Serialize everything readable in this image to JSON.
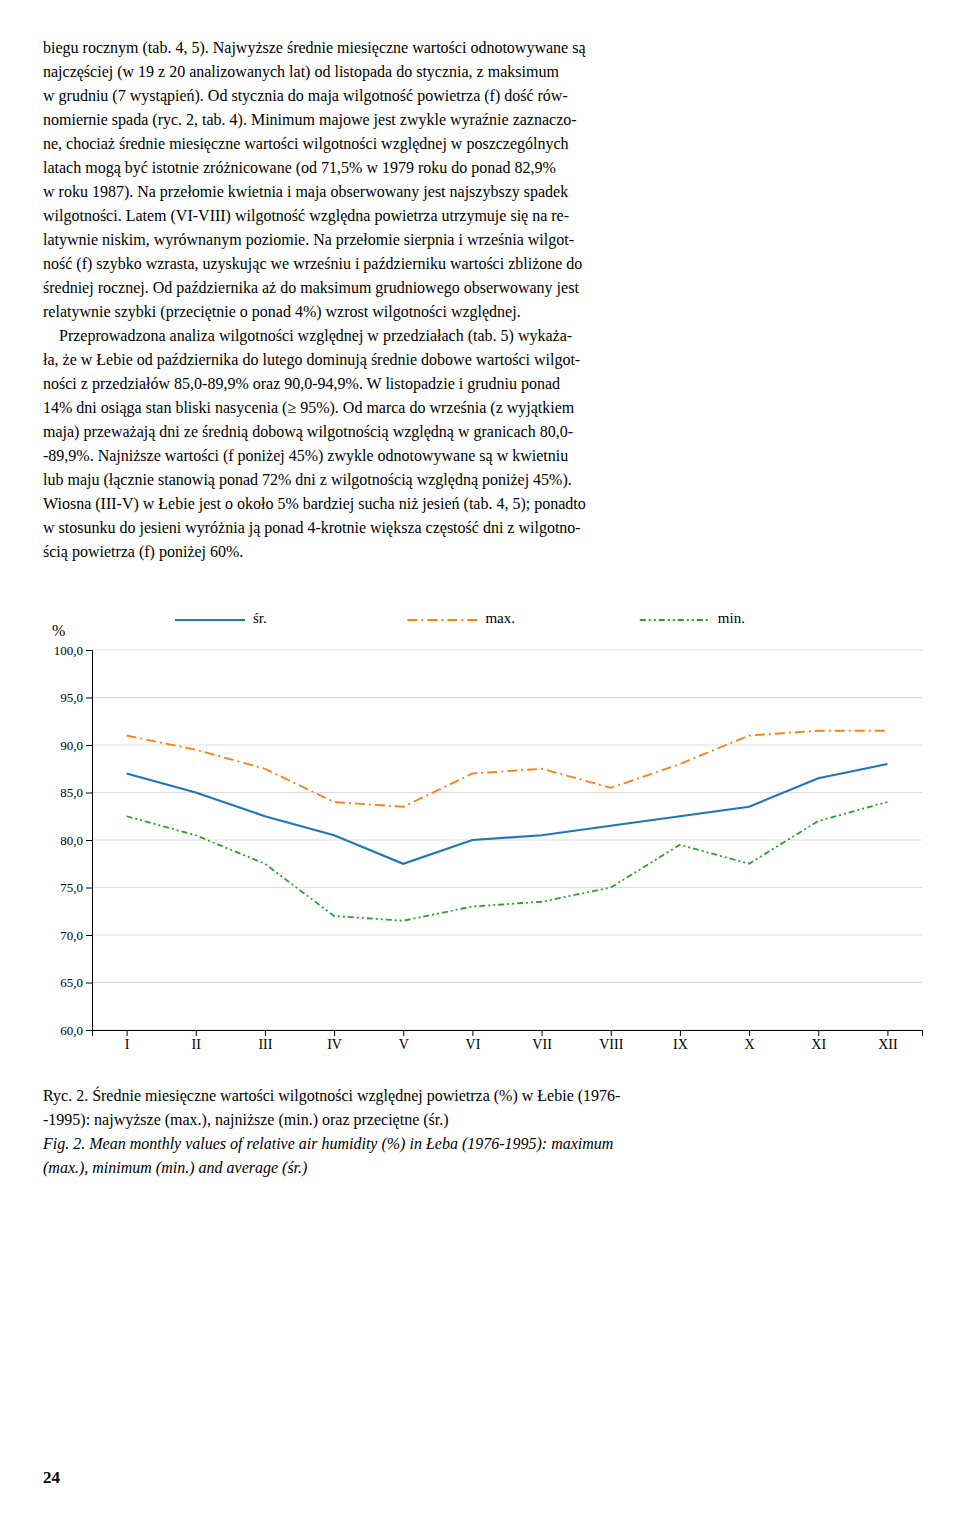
{
  "text_lines": [
    "biegu rocznym (tab. 4, 5). Najwyższe średnie miesięczne wartości odnotowywane są",
    "najczęściej (w 19 z 20 analizowanych lat) od listopada do stycznia, z maksimum",
    "w grudniu (7 wystąpień). Od stycznia do maja wilgotność powietrza (f) dość rów-",
    "nomiernie spada (ryc. 2, tab. 4). Minimum majowe jest zwykle wyraźnie zaznaczo-",
    "ne, chociaż średnie miesięczne wartości wilgotności względnej w poszczególnych",
    "latach mogą być istotnie zróżnicowane (od 71,5% w 1979 roku do ponad 82,9%",
    "w roku 1987). Na przełomie kwietnia i maja obserwowany jest najszybszy spadek",
    "wilgotności. Latem (VI-VIII) wilgotność względna powietrza utrzymuje się na re-",
    "latywnie niskim, wyrównanym poziomie. Na przełomie sierpnia i września wilgot-",
    "ność (f) szybko wzrasta, uzyskując we wrześniu i październiku wartości zbliżone do",
    "średniej rocznej. Od października aż do maksimum grudniowego obserwowany jest",
    "relatywnie szybki (przeciętnie o ponad 4%) wzrost wilgotności względnej.",
    "    Przeprowadzona analiza wilgotności względnej w przedziałach (tab. 5) wykaża-",
    "ła, że w Łebie od października do lutego dominują średnie dobowe wartości wilgot-",
    "ności z przedziałów 85,0-89,9% oraz 90,0-94,9%. W listopadzie i grudniu ponad",
    "14% dni osiąga stan bliski nasycenia (≥ 95%). Od marca do września (z wyjątkiem",
    "maja) przeważają dni ze średnią dobową wilgotnością względną w granicach 80,0-",
    "-89,9%. Najniższe wartości (f poniżej 45%) zwykle odnotowywane są w kwietniu",
    "lub maju (łącznie stanowią ponad 72% dni z wilgotnością względną poniżej 45%).",
    "Wiosna (III-V) w Łebie jest o około 5% bardziej sucha niż jesień (tab. 4, 5); ponadto",
    "w stosunku do jesieni wyróżnia ją ponad 4-krotnie większa częstość dni z wilgotno-",
    "ścią powietrza (f) poniżej 60%."
  ],
  "chart_data": {
    "type": "line",
    "ylabel": "%",
    "categories": [
      "I",
      "II",
      "III",
      "IV",
      "V",
      "VI",
      "VII",
      "VIII",
      "IX",
      "X",
      "XI",
      "XII"
    ],
    "series": [
      {
        "name": "śr.",
        "line_style": "solid",
        "values": [
          87.0,
          85.0,
          82.5,
          80.5,
          77.5,
          80.0,
          80.5,
          81.5,
          82.5,
          83.5,
          86.5,
          88.0
        ]
      },
      {
        "name": "max.",
        "line_style": "dashdot",
        "values": [
          91.0,
          89.5,
          87.5,
          84.0,
          83.5,
          87.0,
          87.5,
          85.5,
          88.0,
          91.0,
          91.5,
          91.5
        ]
      },
      {
        "name": "min.",
        "line_style": "dashdotdot",
        "values": [
          82.5,
          80.5,
          77.5,
          72.0,
          71.5,
          73.0,
          73.5,
          75.0,
          79.5,
          77.5,
          82.0,
          84.0
        ]
      }
    ],
    "ylim": [
      60.0,
      100.0
    ],
    "yticks": [
      {
        "value": 60,
        "label": "60,0"
      },
      {
        "value": 65,
        "label": "65,0"
      },
      {
        "value": 70,
        "label": "70,0"
      },
      {
        "value": 75,
        "label": "75,0"
      },
      {
        "value": 80,
        "label": "80,0"
      },
      {
        "value": 85,
        "label": "85,0"
      },
      {
        "value": 90,
        "label": "90,0"
      },
      {
        "value": 95,
        "label": "95,0"
      },
      {
        "value": 100,
        "label": "100,0"
      }
    ],
    "grid": true,
    "legend": "top"
  },
  "caption_pl": [
    "Ryc. 2. Średnie miesięczne wartości wilgotności względnej powietrza (%) w Łebie (1976-",
    "-1995): najwyższe (max.), najniższe (min.) oraz przeciętne (śr.)"
  ],
  "caption_en": [
    "Fig. 2. Mean monthly values of relative air humidity (%) in Łeba (1976-1995): maximum",
    "(max.), minimum (min.) and average (śr.)"
  ],
  "page_number": "24"
}
